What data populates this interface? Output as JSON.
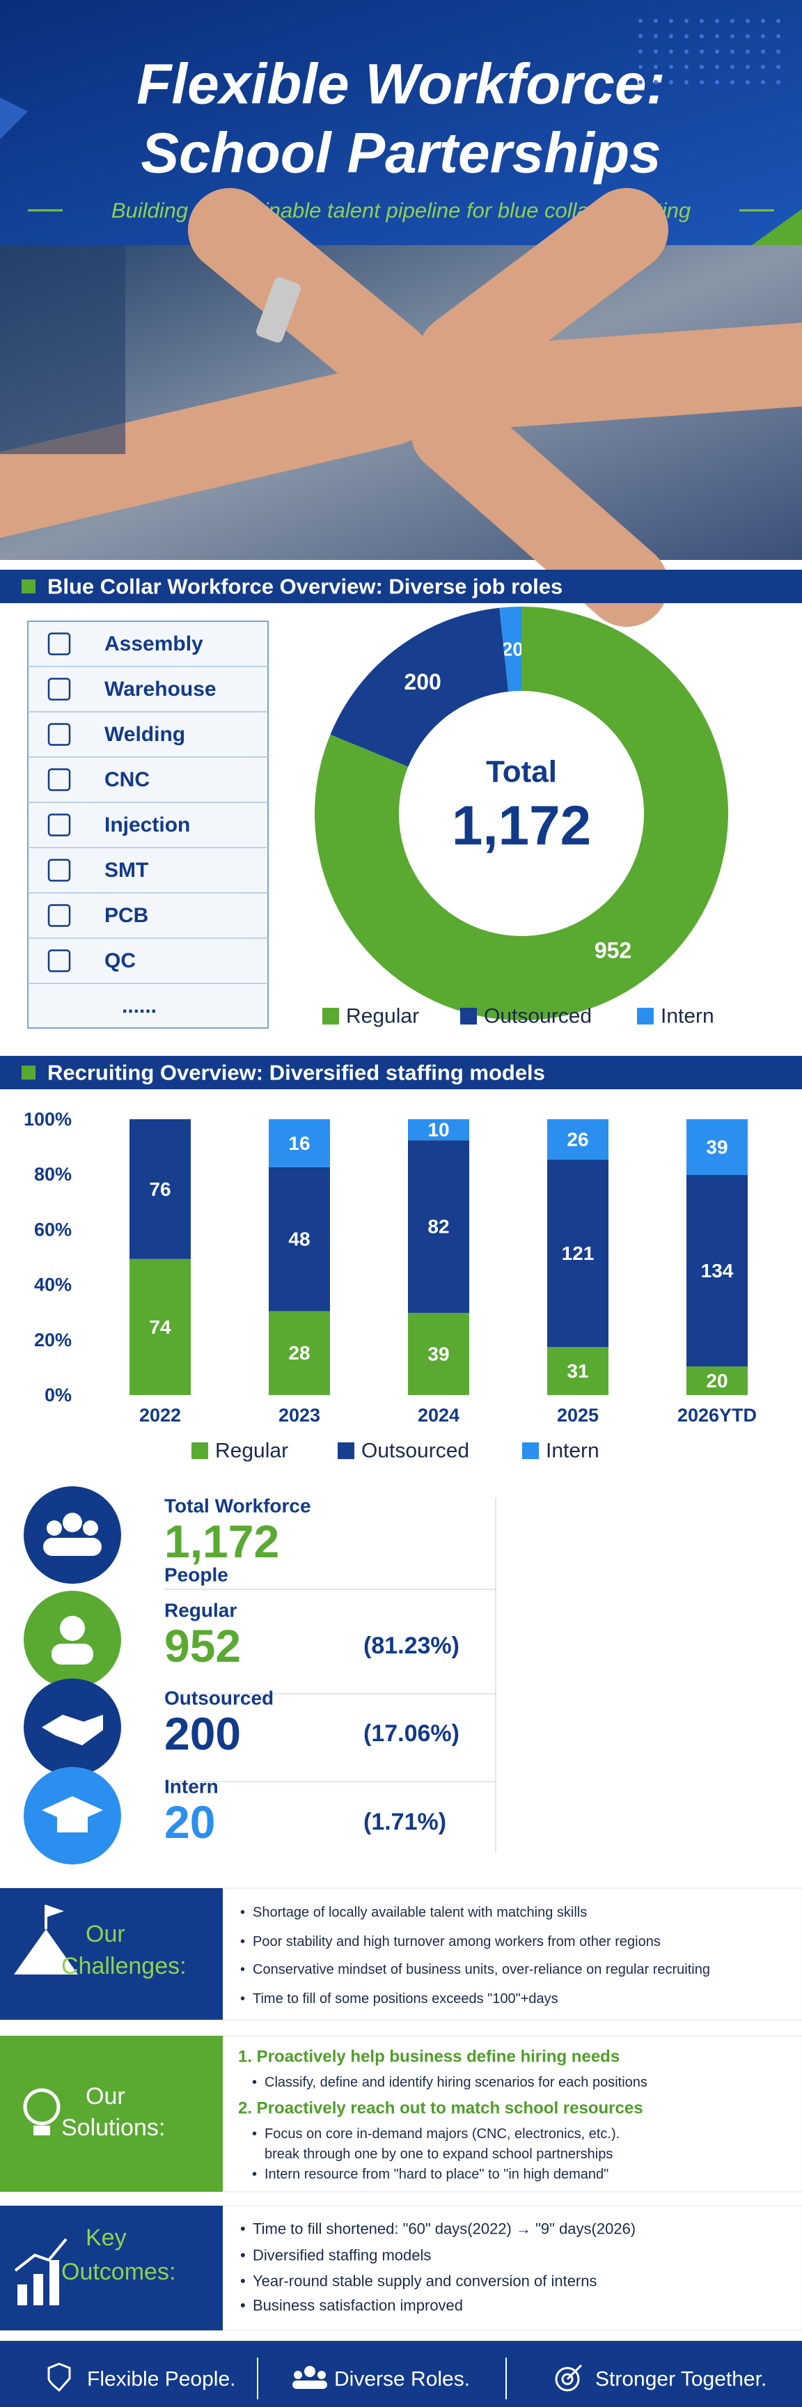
{
  "header": {
    "title_lines": [
      "Flexible Workforce:",
      "School Parterships"
    ],
    "subtitle": "Building a sustainable talent pipeline for blue collar recruiting"
  },
  "sections": [
    "Blue Collar Workforce Overview: Diverse job roles",
    "Recruiting Overview: Diversified staffing models"
  ],
  "job_roles": [
    "Assembly",
    "Warehouse",
    "Welding",
    "CNC",
    "Injection",
    "SMT",
    "PCB",
    "QC",
    "......"
  ],
  "chart_data": [
    {
      "type": "donut",
      "center_label": "Total",
      "center_value": "1,172",
      "categories": [
        "Regular",
        "Outsourced",
        "Intern"
      ],
      "values": [
        952,
        200,
        20
      ],
      "colors": [
        "#5aaa32",
        "#173e8f",
        "#2b8ff0"
      ],
      "legend": "bottom"
    },
    {
      "type": "bar",
      "stacking": "percent",
      "categories": [
        "2022",
        "2023",
        "2024",
        "2025",
        "2026YTD"
      ],
      "series": [
        {
          "name": "Regular",
          "color": "#5aaa32",
          "values": [
            74,
            28,
            39,
            31,
            20
          ]
        },
        {
          "name": "Outsourced",
          "color": "#173e8f",
          "values": [
            76,
            48,
            82,
            121,
            134
          ]
        },
        {
          "name": "Intern",
          "color": "#2b8ff0",
          "values": [
            null,
            16,
            10,
            26,
            39
          ]
        }
      ],
      "ylim": [
        0,
        100
      ],
      "yticks": [
        {
          "value": 0,
          "label": "0%"
        },
        {
          "value": 20,
          "label": "20%"
        },
        {
          "value": 40,
          "label": "40%"
        },
        {
          "value": 60,
          "label": "60%"
        },
        {
          "value": 80,
          "label": "80%"
        },
        {
          "value": 100,
          "label": "100%"
        }
      ],
      "grid": false,
      "legend": "bottom"
    }
  ],
  "stats": [
    {
      "label": "Total Workforce",
      "value": "1,172",
      "unit": "People"
    },
    {
      "label": "Regular",
      "value": "952",
      "share": "(81.23%)"
    },
    {
      "label": "Outsourced",
      "value": "200",
      "share": "(17.06%)"
    },
    {
      "label": "Intern",
      "value": "20",
      "share": "(1.71%)"
    }
  ],
  "challenges": {
    "title_lines": [
      "Our",
      "Challenges:"
    ],
    "bullets": [
      "Shortage of locally available talent with matching skills",
      "Poor stability and high turnover among workers from other regions",
      "Conservative mindset of business units, over-reliance on regular recruiting",
      "Time to fill of some positions exceeds \"100\"+days"
    ]
  },
  "solutions": {
    "title_lines": [
      "Our",
      "Solutions:"
    ],
    "items": [
      {
        "heading": "1. Proactively help business define hiring needs",
        "bullets": [
          [
            "Classify, define and identify hiring scenarios for each positions"
          ]
        ]
      },
      {
        "heading": "2. Proactively reach out to match school resources",
        "bullets": [
          [
            "Focus on core in-demand majors (CNC, electronics, etc.).",
            "break through one by one to expand school partnerships"
          ],
          [
            "Intern resource from \"hard to place\" to \"in high demand\""
          ]
        ]
      }
    ]
  },
  "outcomes": {
    "title_lines": [
      "Key",
      "Outcomes:"
    ],
    "bullets": [
      "Time to fill shortened: \"60\" days(2022) → \"9\" days(2026)",
      "Diversified staffing models",
      "Year-round stable supply and conversion of interns",
      "Business satisfaction improved"
    ]
  },
  "footer": [
    "Flexible People.",
    "Diverse Roles.",
    "Stronger Together."
  ]
}
